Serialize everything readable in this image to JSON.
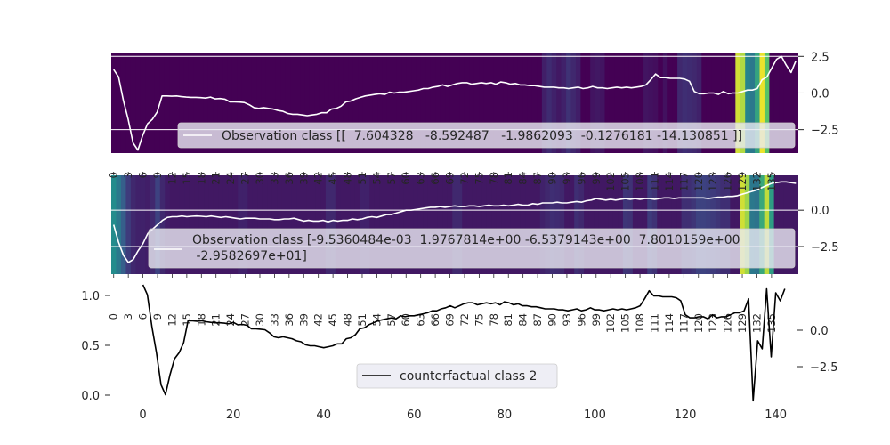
{
  "chart_data": [
    {
      "type": "heatmap+line",
      "panel": "top",
      "series": [
        {
          "name": "Observation class [[  7.604328   -8.592487   -1.9862093  -0.1276181 -14.130851 ]]",
          "color": "#ffffff"
        }
      ],
      "legend_label": "Observation class [[  7.604328   -8.592487   -1.9862093  -0.1276181 -14.130851 ]]",
      "legend_position": "lower right",
      "right_yticks": [
        "2.5",
        "0.0",
        "−2.5"
      ],
      "right_yvalues": [
        2.5,
        0.0,
        -2.5
      ],
      "ylim": [
        -4.1,
        2.7
      ],
      "xlim": [
        0,
        136
      ],
      "colormap": "viridis",
      "heat_default": 0.0,
      "heat_cells": [
        [
          89,
          0.09
        ],
        [
          90,
          0.13
        ],
        [
          91,
          0.1
        ],
        [
          92,
          0.07
        ],
        [
          93,
          0.1
        ],
        [
          94,
          0.15
        ],
        [
          95,
          0.12
        ],
        [
          96,
          0.09
        ],
        [
          99,
          0.06
        ],
        [
          100,
          0.07
        ],
        [
          101,
          0.06
        ],
        [
          110,
          0.06
        ],
        [
          111,
          0.05
        ],
        [
          112,
          0.04
        ],
        [
          114,
          0.05
        ],
        [
          117,
          0.12
        ],
        [
          118,
          0.14
        ],
        [
          119,
          0.13
        ],
        [
          120,
          0.12
        ],
        [
          121,
          0.1
        ],
        [
          129,
          0.93
        ],
        [
          130,
          0.88
        ],
        [
          131,
          0.45
        ],
        [
          132,
          0.4
        ],
        [
          133,
          0.58
        ],
        [
          134,
          0.97
        ],
        [
          135,
          0.72
        ]
      ],
      "line_y": [
        1.6,
        1.1,
        -0.5,
        -1.8,
        -3.4,
        -3.9,
        -2.9,
        -2.1,
        -1.8,
        -1.3,
        -0.2,
        -0.2,
        -0.22,
        -0.2,
        -0.25,
        -0.28,
        -0.3,
        -0.3,
        -0.32,
        -0.35,
        -0.28,
        -0.4,
        -0.38,
        -0.42,
        -0.6,
        -0.6,
        -0.62,
        -0.65,
        -0.8,
        -1.0,
        -1.05,
        -1.0,
        -1.05,
        -1.1,
        -1.2,
        -1.25,
        -1.4,
        -1.45,
        -1.45,
        -1.5,
        -1.55,
        -1.5,
        -1.45,
        -1.35,
        -1.35,
        -1.1,
        -1.05,
        -0.9,
        -0.6,
        -0.55,
        -0.4,
        -0.3,
        -0.2,
        -0.15,
        -0.1,
        -0.05,
        -0.1,
        0.05,
        0.0,
        0.05,
        0.05,
        0.1,
        0.15,
        0.2,
        0.3,
        0.3,
        0.4,
        0.45,
        0.55,
        0.45,
        0.55,
        0.65,
        0.7,
        0.7,
        0.6,
        0.65,
        0.7,
        0.65,
        0.7,
        0.6,
        0.75,
        0.7,
        0.6,
        0.65,
        0.55,
        0.55,
        0.5,
        0.5,
        0.45,
        0.4,
        0.4,
        0.4,
        0.35,
        0.35,
        0.3,
        0.35,
        0.4,
        0.3,
        0.35,
        0.45,
        0.35,
        0.35,
        0.3,
        0.35,
        0.4,
        0.35,
        0.4,
        0.35,
        0.4,
        0.45,
        0.55,
        0.9,
        1.3,
        1.05,
        1.05,
        1.0,
        1.0,
        1.0,
        0.95,
        0.8,
        0.1,
        -0.05,
        -0.05,
        0.0,
        0.0,
        -0.1,
        0.1,
        -0.05,
        0.0,
        0.0,
        0.1,
        0.2,
        0.2,
        0.3,
        0.9,
        1.1,
        1.7,
        2.3,
        2.5,
        1.9,
        1.4,
        2.2
      ]
    },
    {
      "type": "heatmap+line",
      "panel": "middle",
      "series": [
        {
          "name": "Observation class [-9.5360484e-03  1.9767814e+00 -6.5379143e+00  7.8010159e+00\n -2.9582697e+01]",
          "color": "#ffffff"
        }
      ],
      "legend_label": "Observation class [-9.5360484e-03  1.9767814e+00 -6.5379143e+00  7.8010159e+00\n -2.9582697e+01]",
      "legend_position": "lower left",
      "right_yticks": [
        "0.0",
        "−2.5"
      ],
      "right_yvalues": [
        0.0,
        -2.5
      ],
      "ylim": [
        -4.4,
        2.4
      ],
      "xlim": [
        0,
        136
      ],
      "x_tick_labels": [
        "0",
        "3",
        "6",
        "9",
        "12",
        "15",
        "18",
        "21",
        "24",
        "27",
        "30",
        "33",
        "36",
        "39",
        "42",
        "45",
        "48",
        "51",
        "54",
        "57",
        "60",
        "63",
        "66",
        "69",
        "72",
        "75",
        "78",
        "81",
        "84",
        "87",
        "90",
        "93",
        "96",
        "99",
        "102",
        "105",
        "108",
        "111",
        "114",
        "117",
        "120",
        "123",
        "126",
        "129",
        "132",
        "135"
      ],
      "colormap": "viridis",
      "heat_default": 0.07,
      "heat_cells": [
        [
          0,
          0.48
        ],
        [
          1,
          0.4
        ],
        [
          2,
          0.3
        ],
        [
          3,
          0.18
        ],
        [
          4,
          0.12
        ],
        [
          5,
          0.1
        ],
        [
          6,
          0.1
        ],
        [
          7,
          0.09
        ],
        [
          8,
          0.12
        ],
        [
          9,
          0.2
        ],
        [
          10,
          0.12
        ],
        [
          11,
          0.08
        ],
        [
          26,
          0.1
        ],
        [
          27,
          0.1
        ],
        [
          44,
          0.12
        ],
        [
          45,
          0.12
        ],
        [
          51,
          0.1
        ],
        [
          52,
          0.1
        ],
        [
          70,
          0.12
        ],
        [
          71,
          0.12
        ],
        [
          88,
          0.1
        ],
        [
          89,
          0.12
        ],
        [
          90,
          0.14
        ],
        [
          91,
          0.13
        ],
        [
          92,
          0.12
        ],
        [
          95,
          0.14
        ],
        [
          96,
          0.12
        ],
        [
          105,
          0.16
        ],
        [
          106,
          0.15
        ],
        [
          110,
          0.18
        ],
        [
          111,
          0.15
        ],
        [
          117,
          0.14
        ],
        [
          118,
          0.14
        ],
        [
          119,
          0.16
        ],
        [
          120,
          0.2
        ],
        [
          121,
          0.2
        ],
        [
          122,
          0.19
        ],
        [
          123,
          0.18
        ],
        [
          124,
          0.16
        ],
        [
          125,
          0.14
        ],
        [
          126,
          0.14
        ],
        [
          129,
          0.93
        ],
        [
          130,
          0.85
        ],
        [
          131,
          0.4
        ],
        [
          132,
          0.38
        ],
        [
          133,
          0.6
        ],
        [
          134,
          0.9
        ],
        [
          135,
          0.55
        ]
      ],
      "line_y": [
        -1.0,
        -2.2,
        -3.1,
        -3.6,
        -3.4,
        -2.8,
        -2.3,
        -1.6,
        -1.3,
        -1.0,
        -0.7,
        -0.5,
        -0.45,
        -0.45,
        -0.4,
        -0.45,
        -0.42,
        -0.4,
        -0.42,
        -0.45,
        -0.4,
        -0.45,
        -0.5,
        -0.45,
        -0.5,
        -0.55,
        -0.6,
        -0.55,
        -0.55,
        -0.55,
        -0.6,
        -0.6,
        -0.6,
        -0.65,
        -0.65,
        -0.6,
        -0.6,
        -0.55,
        -0.65,
        -0.75,
        -0.7,
        -0.75,
        -0.75,
        -0.7,
        -0.8,
        -0.7,
        -0.75,
        -0.7,
        -0.7,
        -0.6,
        -0.65,
        -0.6,
        -0.5,
        -0.45,
        -0.5,
        -0.4,
        -0.3,
        -0.3,
        -0.2,
        -0.1,
        0.0,
        0.0,
        0.05,
        0.1,
        0.15,
        0.2,
        0.2,
        0.25,
        0.2,
        0.25,
        0.3,
        0.25,
        0.25,
        0.3,
        0.3,
        0.25,
        0.3,
        0.35,
        0.3,
        0.3,
        0.35,
        0.3,
        0.35,
        0.4,
        0.35,
        0.35,
        0.45,
        0.4,
        0.5,
        0.5,
        0.5,
        0.55,
        0.5,
        0.5,
        0.55,
        0.6,
        0.55,
        0.65,
        0.7,
        0.8,
        0.75,
        0.7,
        0.75,
        0.7,
        0.75,
        0.8,
        0.75,
        0.8,
        0.75,
        0.8,
        0.8,
        0.75,
        0.8,
        0.85,
        0.85,
        0.8,
        0.85,
        0.85,
        0.85,
        0.85,
        0.85,
        0.85,
        0.8,
        0.85,
        0.9,
        0.9,
        0.95,
        0.95,
        1.0,
        1.1,
        1.2,
        1.3,
        1.4,
        1.55,
        1.7,
        1.85,
        1.9,
        1.95,
        1.95,
        1.9,
        1.85
      ]
    },
    {
      "type": "line",
      "panel": "bottom",
      "series": [
        {
          "name": "counterfactual class 2",
          "color": "#000000"
        }
      ],
      "legend_label": "counterfactual class 2",
      "legend_position": "lower center",
      "xticks": [
        0,
        20,
        40,
        60,
        80,
        100,
        120,
        140
      ],
      "xlim": [
        -7,
        145
      ],
      "left_yticks": [
        "0.0",
        "0.5",
        "1.0"
      ],
      "left_yvalues": [
        0.0,
        0.5,
        1.0
      ],
      "right_yticks": [
        "0.0",
        "−2.5"
      ],
      "right_yvalues": [
        0.0,
        -2.5
      ],
      "ylim": [
        -4.5,
        1.6
      ],
      "line_y": [
        1.6,
        1.1,
        -0.5,
        -1.8,
        -3.4,
        -3.9,
        -2.9,
        -2.1,
        -1.8,
        -1.3,
        -0.2,
        -0.2,
        -0.22,
        -0.2,
        -0.25,
        -0.28,
        -0.3,
        -0.3,
        -0.32,
        -0.35,
        -0.28,
        -0.4,
        -0.38,
        -0.42,
        -0.6,
        -0.6,
        -0.62,
        -0.65,
        -0.8,
        -1.0,
        -1.05,
        -1.0,
        -1.05,
        -1.1,
        -1.2,
        -1.25,
        -1.4,
        -1.45,
        -1.45,
        -1.5,
        -1.55,
        -1.5,
        -1.45,
        -1.35,
        -1.35,
        -1.1,
        -1.05,
        -0.9,
        -0.6,
        -0.55,
        -0.4,
        -0.3,
        -0.2,
        -0.15,
        -0.1,
        -0.05,
        -0.1,
        0.05,
        0.0,
        0.05,
        0.05,
        0.1,
        0.15,
        0.2,
        0.3,
        0.3,
        0.4,
        0.45,
        0.55,
        0.45,
        0.55,
        0.65,
        0.7,
        0.7,
        0.6,
        0.65,
        0.7,
        0.65,
        0.7,
        0.6,
        0.75,
        0.7,
        0.6,
        0.65,
        0.55,
        0.55,
        0.5,
        0.5,
        0.45,
        0.4,
        0.4,
        0.4,
        0.35,
        0.35,
        0.3,
        0.35,
        0.4,
        0.3,
        0.35,
        0.45,
        0.35,
        0.35,
        0.3,
        0.35,
        0.4,
        0.35,
        0.4,
        0.35,
        0.4,
        0.45,
        0.55,
        0.9,
        1.3,
        1.05,
        1.05,
        1.0,
        1.0,
        1.0,
        0.95,
        0.8,
        0.1,
        -0.05,
        -0.05,
        0.0,
        0.0,
        -0.1,
        0.1,
        -0.05,
        0.0,
        0.0,
        0.1,
        0.2,
        0.2,
        0.3,
        0.9,
        -4.2,
        -1.2,
        -1.6,
        1.4,
        -2.0,
        1.2,
        0.8,
        1.4
      ]
    }
  ]
}
